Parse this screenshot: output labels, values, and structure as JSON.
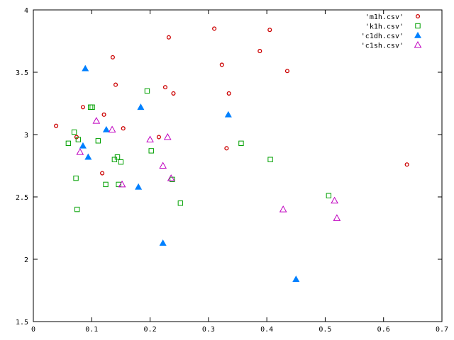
{
  "chart_data": {
    "type": "scatter",
    "xlim": [
      0,
      0.7
    ],
    "ylim": [
      1.5,
      4
    ],
    "x_ticks": [
      0,
      0.1,
      0.2,
      0.3,
      0.4,
      0.5,
      0.6,
      0.7
    ],
    "y_ticks": [
      1.5,
      2,
      2.5,
      3,
      3.5,
      4
    ],
    "x_tick_labels": [
      "0",
      "0.1",
      "0.2",
      "0.3",
      "0.4",
      "0.5",
      "0.6",
      "0.7"
    ],
    "y_tick_labels": [
      "1.5",
      "2",
      "2.5",
      "3",
      "3.5",
      "4"
    ],
    "grid": false,
    "legend_position": "top-right",
    "series": [
      {
        "name": "'m1h.csv'",
        "marker": "circle-open",
        "color": "#cc0000",
        "points": [
          [
            0.039,
            3.07
          ],
          [
            0.074,
            2.98
          ],
          [
            0.085,
            3.22
          ],
          [
            0.118,
            2.69
          ],
          [
            0.121,
            3.16
          ],
          [
            0.136,
            3.62
          ],
          [
            0.141,
            3.4
          ],
          [
            0.154,
            3.05
          ],
          [
            0.215,
            2.98
          ],
          [
            0.226,
            3.38
          ],
          [
            0.232,
            3.78
          ],
          [
            0.24,
            3.33
          ],
          [
            0.31,
            3.85
          ],
          [
            0.323,
            3.56
          ],
          [
            0.331,
            2.89
          ],
          [
            0.335,
            3.33
          ],
          [
            0.388,
            3.67
          ],
          [
            0.405,
            3.84
          ],
          [
            0.435,
            3.51
          ],
          [
            0.64,
            2.76
          ]
        ]
      },
      {
        "name": "'k1h.csv'",
        "marker": "square-open",
        "color": "#00a000",
        "points": [
          [
            0.06,
            2.93
          ],
          [
            0.07,
            3.02
          ],
          [
            0.073,
            2.65
          ],
          [
            0.075,
            2.4
          ],
          [
            0.077,
            2.96
          ],
          [
            0.098,
            3.22
          ],
          [
            0.101,
            3.22
          ],
          [
            0.111,
            2.95
          ],
          [
            0.124,
            2.6
          ],
          [
            0.139,
            2.8
          ],
          [
            0.144,
            2.82
          ],
          [
            0.146,
            2.6
          ],
          [
            0.15,
            2.78
          ],
          [
            0.195,
            3.35
          ],
          [
            0.202,
            2.87
          ],
          [
            0.238,
            2.64
          ],
          [
            0.252,
            2.45
          ],
          [
            0.356,
            2.93
          ],
          [
            0.406,
            2.8
          ],
          [
            0.506,
            2.51
          ]
        ]
      },
      {
        "name": "'c1dh.csv'",
        "marker": "triangle-filled",
        "color": "#0080ff",
        "points": [
          [
            0.085,
            2.91
          ],
          [
            0.089,
            3.53
          ],
          [
            0.094,
            2.82
          ],
          [
            0.125,
            3.04
          ],
          [
            0.18,
            2.58
          ],
          [
            0.184,
            3.22
          ],
          [
            0.222,
            2.13
          ],
          [
            0.334,
            3.16
          ],
          [
            0.45,
            1.84
          ]
        ]
      },
      {
        "name": "'c1sh.csv'",
        "marker": "triangle-open",
        "color": "#c000c0",
        "points": [
          [
            0.08,
            2.86
          ],
          [
            0.108,
            3.11
          ],
          [
            0.135,
            3.04
          ],
          [
            0.152,
            2.6
          ],
          [
            0.2,
            2.96
          ],
          [
            0.222,
            2.75
          ],
          [
            0.23,
            2.98
          ],
          [
            0.236,
            2.65
          ],
          [
            0.428,
            2.4
          ],
          [
            0.516,
            2.47
          ],
          [
            0.52,
            2.33
          ]
        ]
      }
    ]
  }
}
